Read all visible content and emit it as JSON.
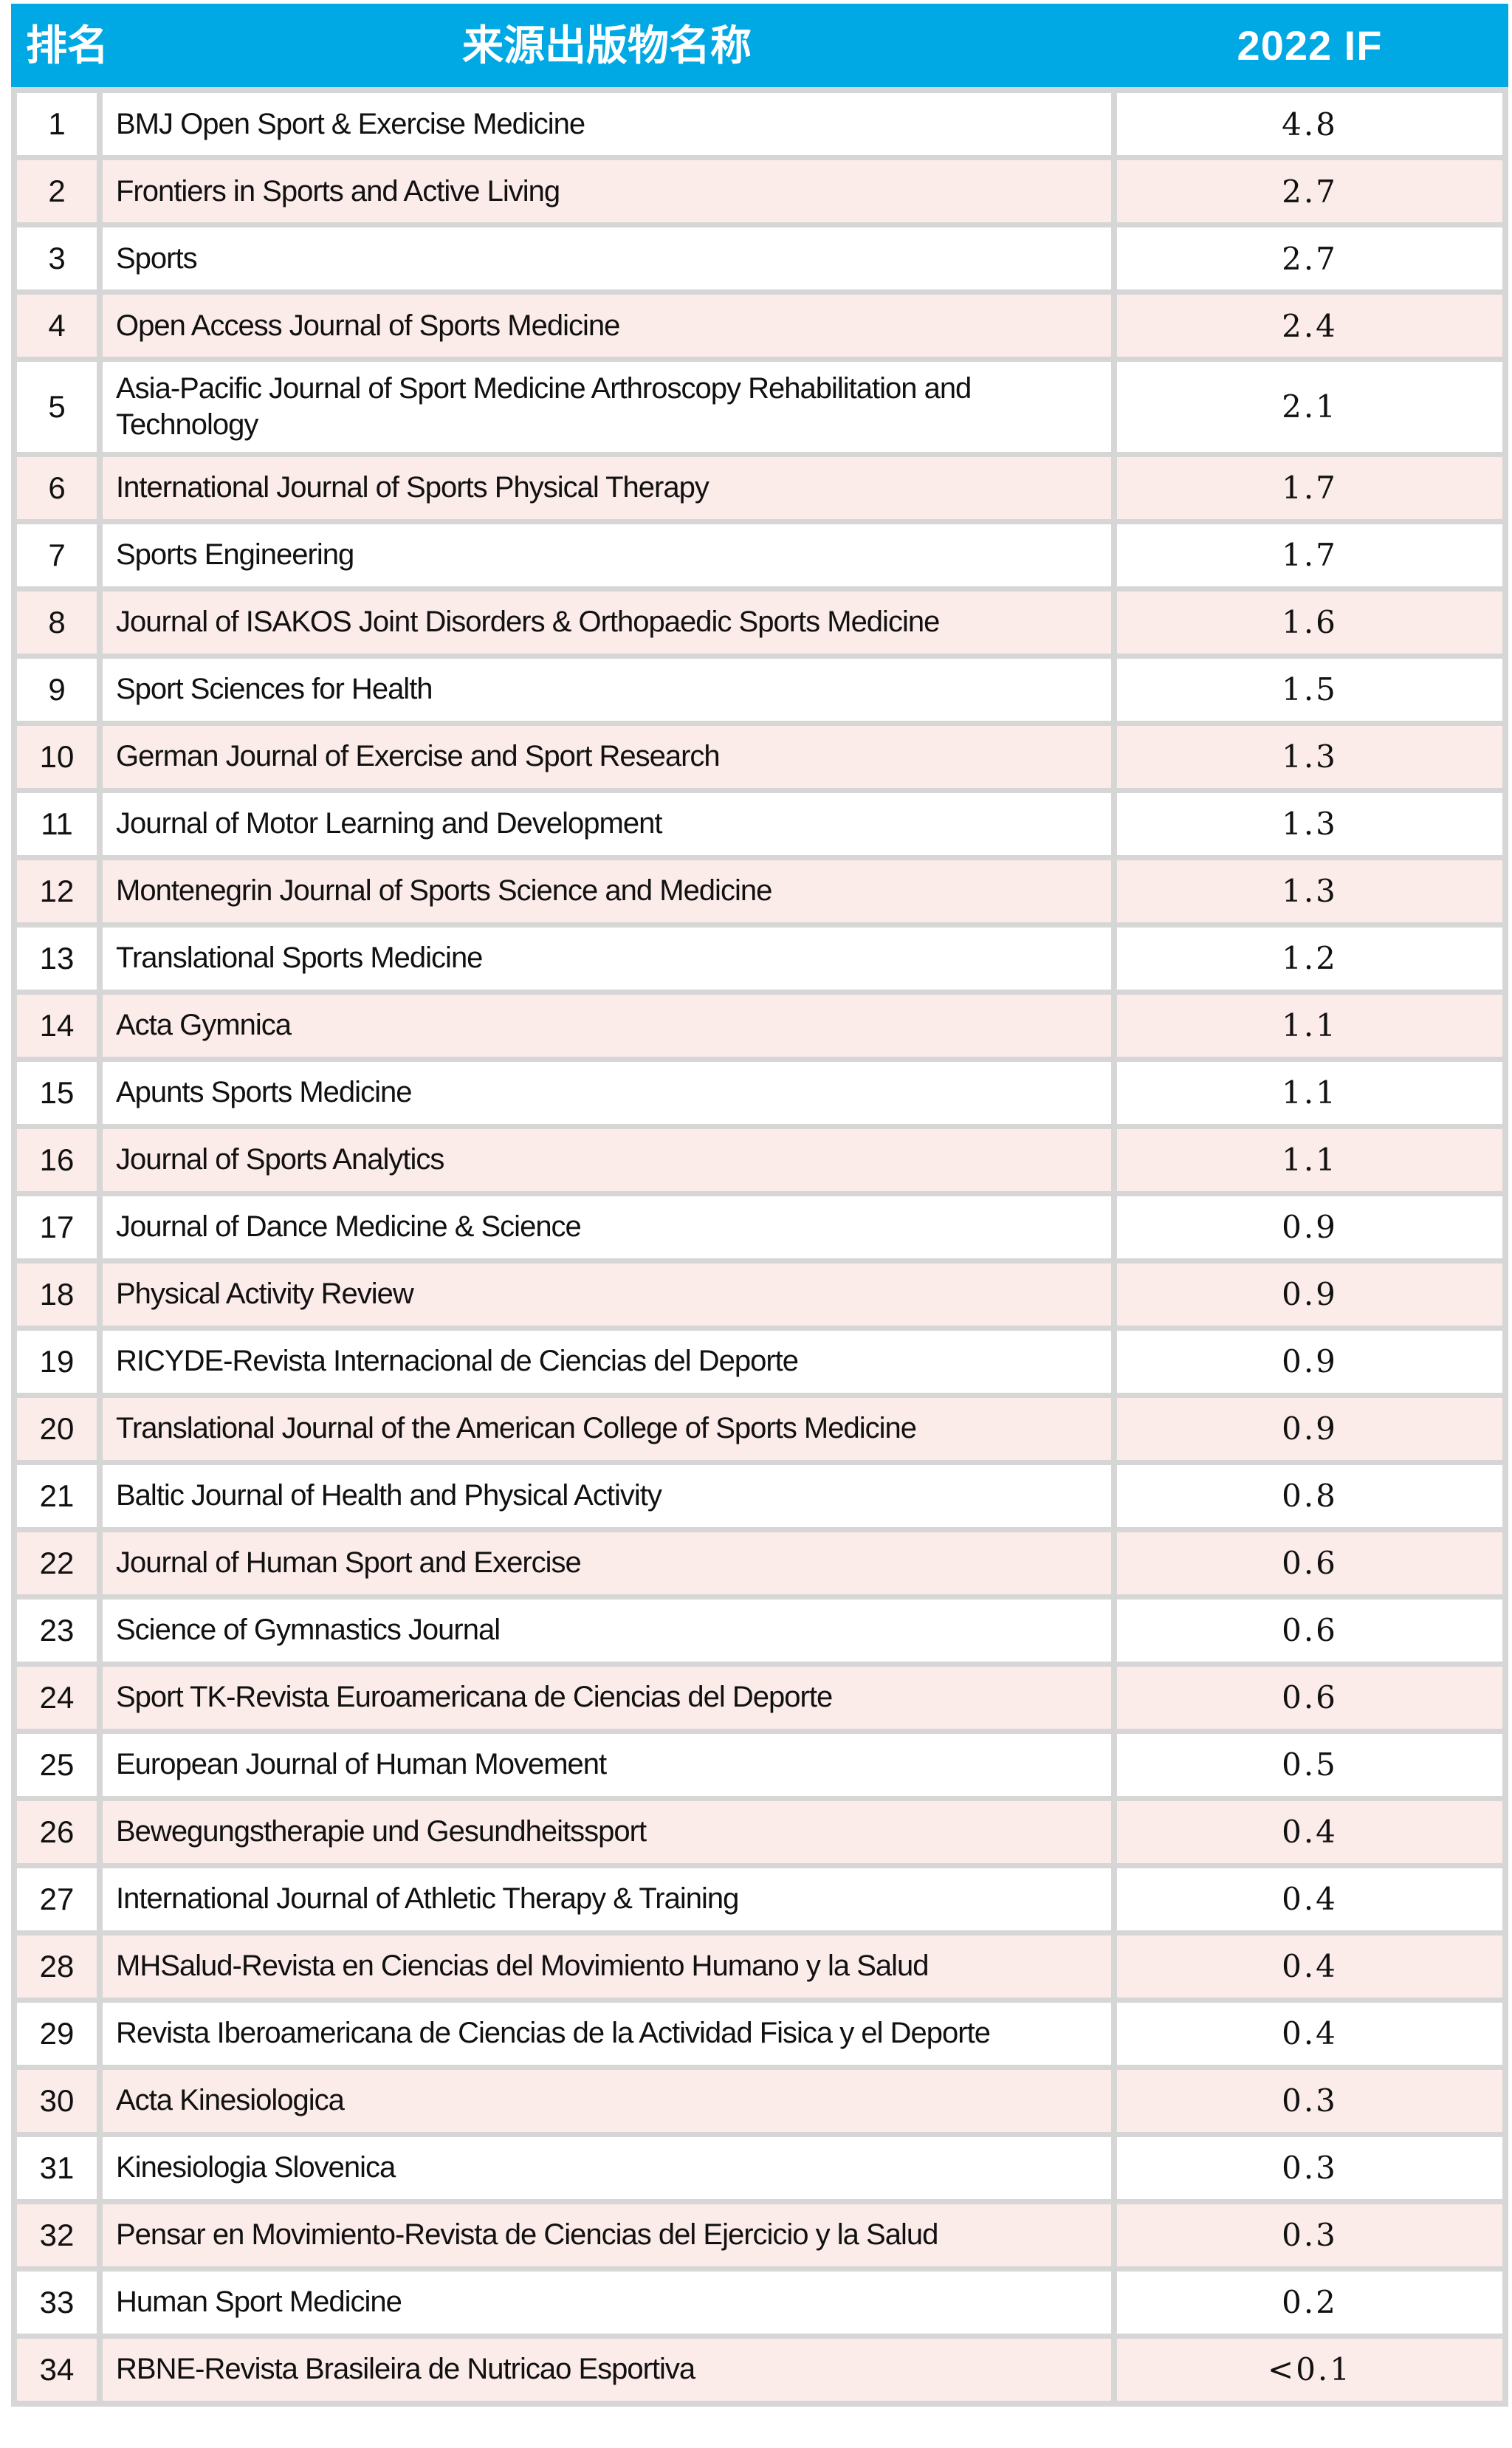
{
  "table": {
    "columns": {
      "rank_label": "排名",
      "name_label": "来源出版物名称",
      "if_label": "2022 IF"
    },
    "colors": {
      "header_bg": "#00A8E4",
      "header_text": "#FFFFFF",
      "row_bg": "#FFFFFF",
      "row_alt_bg": "#FBEBE9",
      "grid_border": "#D6D6D6",
      "body_text": "#111111"
    },
    "rows": [
      {
        "rank": "1",
        "name": "BMJ Open Sport & Exercise Medicine",
        "if": "4.8"
      },
      {
        "rank": "2",
        "name": "Frontiers in Sports and Active Living",
        "if": "2.7"
      },
      {
        "rank": "3",
        "name": "Sports",
        "if": "2.7"
      },
      {
        "rank": "4",
        "name": "Open Access Journal of Sports Medicine",
        "if": "2.4"
      },
      {
        "rank": "5",
        "name": "Asia-Pacific Journal of Sport Medicine Arthroscopy Rehabilitation and Technology",
        "if": "2.1"
      },
      {
        "rank": "6",
        "name": "International Journal of Sports Physical Therapy",
        "if": "1.7"
      },
      {
        "rank": "7",
        "name": "Sports Engineering",
        "if": "1.7"
      },
      {
        "rank": "8",
        "name": "Journal of ISAKOS Joint Disorders & Orthopaedic Sports Medicine",
        "if": "1.6"
      },
      {
        "rank": "9",
        "name": "Sport Sciences for Health",
        "if": "1.5"
      },
      {
        "rank": "10",
        "name": "German Journal of Exercise and Sport Research",
        "if": "1.3"
      },
      {
        "rank": "11",
        "name": "Journal of Motor Learning and Development",
        "if": "1.3"
      },
      {
        "rank": "12",
        "name": "Montenegrin Journal of Sports Science and Medicine",
        "if": "1.3"
      },
      {
        "rank": "13",
        "name": "Translational Sports Medicine",
        "if": "1.2"
      },
      {
        "rank": "14",
        "name": "Acta Gymnica",
        "if": "1.1"
      },
      {
        "rank": "15",
        "name": "Apunts Sports Medicine",
        "if": "1.1"
      },
      {
        "rank": "16",
        "name": "Journal of Sports Analytics",
        "if": "1.1"
      },
      {
        "rank": "17",
        "name": "Journal of Dance Medicine & Science",
        "if": "0.9"
      },
      {
        "rank": "18",
        "name": "Physical Activity Review",
        "if": "0.9"
      },
      {
        "rank": "19",
        "name": "RICYDE-Revista Internacional de Ciencias del Deporte",
        "if": "0.9"
      },
      {
        "rank": "20",
        "name": "Translational Journal of the American College of Sports Medicine",
        "if": "0.9"
      },
      {
        "rank": "21",
        "name": "Baltic Journal of Health and Physical Activity",
        "if": "0.8"
      },
      {
        "rank": "22",
        "name": "Journal of Human Sport and Exercise",
        "if": "0.6"
      },
      {
        "rank": "23",
        "name": "Science of Gymnastics Journal",
        "if": "0.6"
      },
      {
        "rank": "24",
        "name": "Sport TK-Revista Euroamericana de Ciencias del Deporte",
        "if": "0.6"
      },
      {
        "rank": "25",
        "name": "European Journal of Human Movement",
        "if": "0.5"
      },
      {
        "rank": "26",
        "name": "Bewegungstherapie und Gesundheitssport",
        "if": "0.4"
      },
      {
        "rank": "27",
        "name": "International Journal of Athletic Therapy & Training",
        "if": "0.4"
      },
      {
        "rank": "28",
        "name": "MHSalud-Revista en Ciencias del Movimiento Humano y la Salud",
        "if": "0.4"
      },
      {
        "rank": "29",
        "name": "Revista Iberoamericana de Ciencias de la Actividad Fisica y el Deporte",
        "if": "0.4"
      },
      {
        "rank": "30",
        "name": "Acta Kinesiologica",
        "if": "0.3"
      },
      {
        "rank": "31",
        "name": "Kinesiologia Slovenica",
        "if": "0.3"
      },
      {
        "rank": "32",
        "name": "Pensar en Movimiento-Revista de Ciencias del Ejercicio y la Salud",
        "if": "0.3"
      },
      {
        "rank": "33",
        "name": "Human Sport Medicine",
        "if": "0.2"
      },
      {
        "rank": "34",
        "name": "RBNE-Revista Brasileira de Nutricao Esportiva",
        "if": "<0.1"
      }
    ]
  }
}
